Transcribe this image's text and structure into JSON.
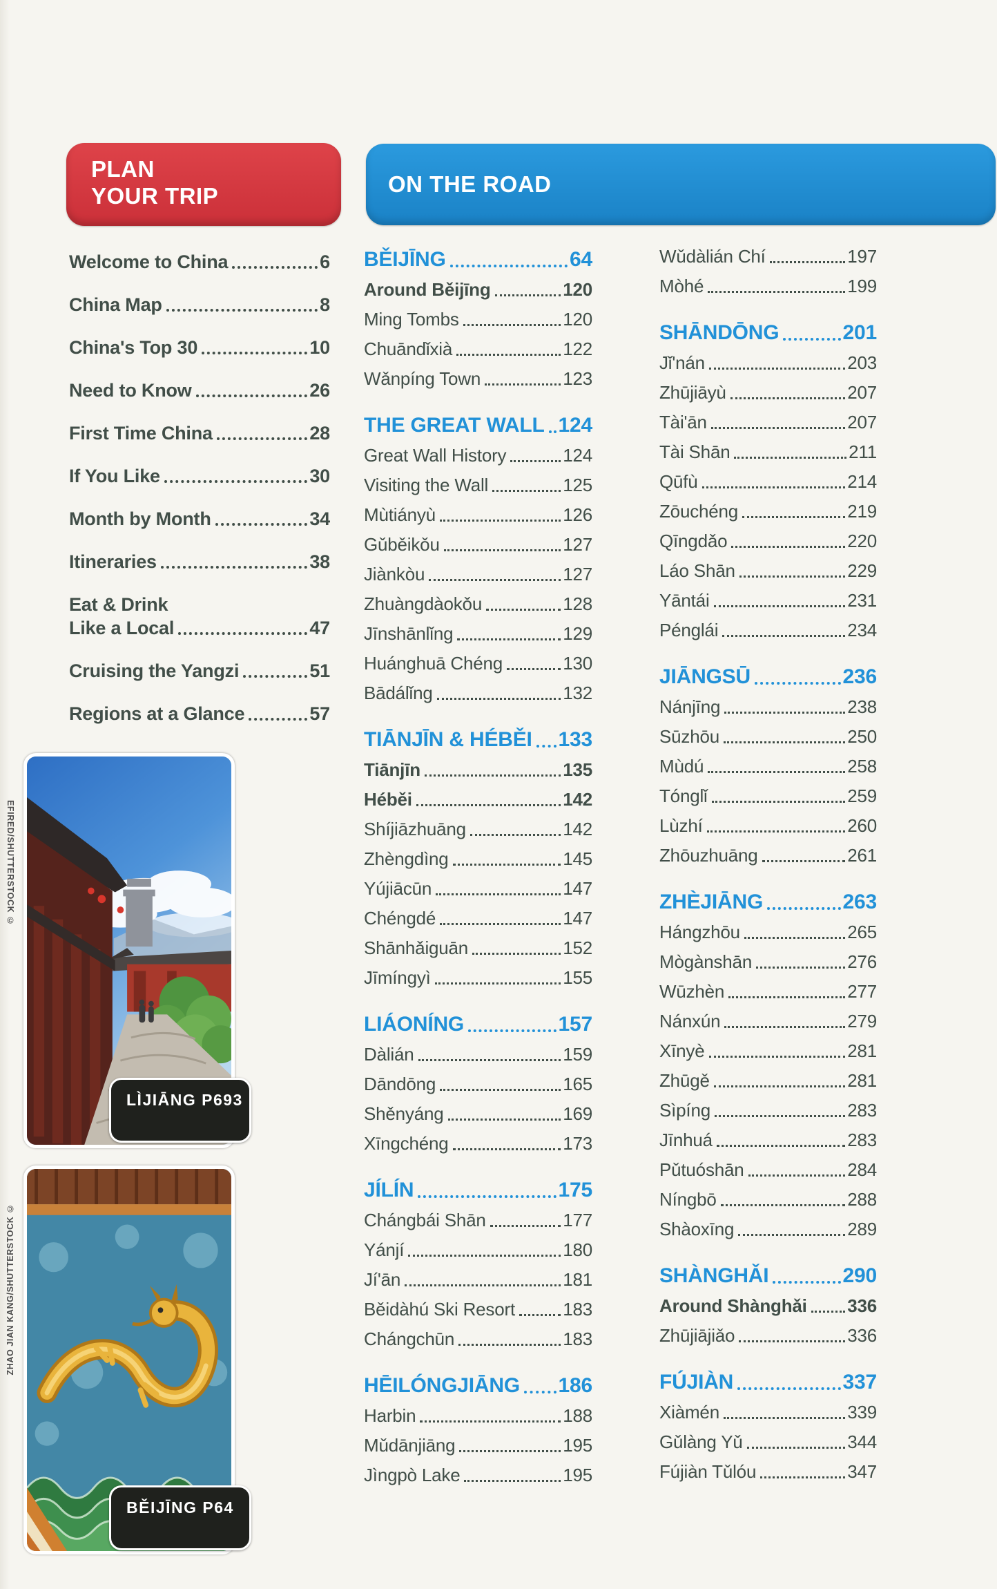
{
  "page": {
    "background": "#f6f5f0",
    "text_color": "#414e48",
    "accent_blue": "#2191d8",
    "badge_red": "#d8393f"
  },
  "badges": {
    "plan_line1": "PLAN",
    "plan_line2": "YOUR TRIP",
    "on_the_road": "ON THE ROAD"
  },
  "plan_items": [
    {
      "label": "Welcome to China",
      "page": "6"
    },
    {
      "label": "China Map",
      "page": "8"
    },
    {
      "label": "China's Top 30",
      "page": "10"
    },
    {
      "label": "Need to Know",
      "page": "26"
    },
    {
      "label": "First Time China",
      "page": "28"
    },
    {
      "label": "If You Like",
      "page": "30"
    },
    {
      "label": "Month by Month",
      "page": "34"
    },
    {
      "label": "Itineraries",
      "page": "38"
    },
    {
      "label": "Eat & Drink",
      "page": ""
    },
    {
      "label": "Like a Local",
      "page": "47"
    },
    {
      "label": "Cruising the Yangzi",
      "page": "51"
    },
    {
      "label": "Regions at a Glance",
      "page": "57"
    }
  ],
  "columns": {
    "middle": [
      {
        "title": "BĚIJĪNG",
        "page": "64",
        "entries": [
          {
            "label": "Around Běijīng",
            "page": "120",
            "bold": true
          },
          {
            "label": "Ming Tombs",
            "page": "120"
          },
          {
            "label": "Chuāndǐxià",
            "page": "122"
          },
          {
            "label": "Wǎnpíng Town",
            "page": "123"
          }
        ]
      },
      {
        "title": "THE GREAT WALL",
        "page": "124",
        "entries": [
          {
            "label": "Great Wall History",
            "page": "124"
          },
          {
            "label": "Visiting the Wall",
            "page": "125"
          },
          {
            "label": "Mùtiányù",
            "page": "126"
          },
          {
            "label": "Gǔběikǒu",
            "page": "127"
          },
          {
            "label": "Jiànkòu",
            "page": "127"
          },
          {
            "label": "Zhuàngdàokǒu",
            "page": "128"
          },
          {
            "label": "Jīnshānlǐng",
            "page": "129"
          },
          {
            "label": "Huánghuā Chéng",
            "page": "130"
          },
          {
            "label": "Bādálǐng",
            "page": "132"
          }
        ]
      },
      {
        "title": "TIĀNJĪN & HÉBĚI",
        "page": "133",
        "entries": [
          {
            "label": "Tiānjīn",
            "page": "135",
            "bold": true
          },
          {
            "label": "Héběi",
            "page": "142",
            "bold": true
          },
          {
            "label": "Shíjiāzhuāng",
            "page": "142"
          },
          {
            "label": "Zhèngdìng",
            "page": "145"
          },
          {
            "label": "Yújiācūn",
            "page": "147"
          },
          {
            "label": "Chéngdé",
            "page": "147"
          },
          {
            "label": "Shānhǎiguān",
            "page": "152"
          },
          {
            "label": "Jīmíngyì",
            "page": "155"
          }
        ]
      },
      {
        "title": "LIÁONÍNG",
        "page": "157",
        "entries": [
          {
            "label": "Dàlián",
            "page": "159"
          },
          {
            "label": "Dāndōng",
            "page": "165"
          },
          {
            "label": "Shěnyáng",
            "page": "169"
          },
          {
            "label": "Xīngchéng",
            "page": "173"
          }
        ]
      },
      {
        "title": "JÍLÍN",
        "page": "175",
        "entries": [
          {
            "label": "Chángbái Shān",
            "page": "177"
          },
          {
            "label": "Yánjí",
            "page": "180"
          },
          {
            "label": "Jí'ān",
            "page": "181"
          },
          {
            "label": "Běidàhú Ski Resort",
            "page": "183"
          },
          {
            "label": "Chángchūn",
            "page": "183"
          }
        ]
      },
      {
        "title": "HĒILÓNGJIĀNG",
        "page": "186",
        "entries": [
          {
            "label": "Harbin",
            "page": "188"
          },
          {
            "label": "Mǔdānjiāng",
            "page": "195"
          },
          {
            "label": "Jìngpò Lake",
            "page": "195"
          }
        ]
      }
    ],
    "right": [
      {
        "title": "",
        "page": "",
        "entries": [
          {
            "label": "Wǔdàlián Chí",
            "page": "197"
          },
          {
            "label": "Mòhé",
            "page": "199"
          }
        ]
      },
      {
        "title": "SHĀNDŌNG",
        "page": "201",
        "entries": [
          {
            "label": "Jǐ'nán",
            "page": "203"
          },
          {
            "label": "Zhūjiāyù",
            "page": "207"
          },
          {
            "label": "Tài'ān",
            "page": "207"
          },
          {
            "label": "Tài Shān",
            "page": "211"
          },
          {
            "label": "Qūfù",
            "page": "214"
          },
          {
            "label": "Zōuchéng",
            "page": "219"
          },
          {
            "label": "Qīngdǎo",
            "page": "220"
          },
          {
            "label": "Láo Shān",
            "page": "229"
          },
          {
            "label": "Yāntái",
            "page": "231"
          },
          {
            "label": "Pénglái",
            "page": "234"
          }
        ]
      },
      {
        "title": "JIĀNGSŪ",
        "page": "236",
        "entries": [
          {
            "label": "Nánjīng",
            "page": "238"
          },
          {
            "label": "Sūzhōu",
            "page": "250"
          },
          {
            "label": "Mùdú",
            "page": "258"
          },
          {
            "label": "Tónglǐ",
            "page": "259"
          },
          {
            "label": "Lùzhí",
            "page": "260"
          },
          {
            "label": "Zhōuzhuāng",
            "page": "261"
          }
        ]
      },
      {
        "title": "ZHÈJIĀNG",
        "page": "263",
        "entries": [
          {
            "label": "Hángzhōu",
            "page": "265"
          },
          {
            "label": "Mògànshān",
            "page": "276"
          },
          {
            "label": "Wūzhèn",
            "page": "277"
          },
          {
            "label": "Nánxún",
            "page": "279"
          },
          {
            "label": "Xīnyè",
            "page": "281"
          },
          {
            "label": "Zhūgě",
            "page": "281"
          },
          {
            "label": "Sìpíng",
            "page": "283"
          },
          {
            "label": "Jīnhuá",
            "page": "283"
          },
          {
            "label": "Pǔtuóshān",
            "page": "284"
          },
          {
            "label": "Níngbō",
            "page": "288"
          },
          {
            "label": "Shàoxīng",
            "page": "289"
          }
        ]
      },
      {
        "title": "SHÀNGHǍI",
        "page": "290",
        "entries": [
          {
            "label": "Around Shànghǎi",
            "page": "336",
            "bold": true
          },
          {
            "label": "Zhūjiājiǎo",
            "page": "336"
          }
        ]
      },
      {
        "title": "FÚJIÀN",
        "page": "337",
        "entries": [
          {
            "label": "Xiàmén",
            "page": "339"
          },
          {
            "label": "Gǔlàng Yǔ",
            "page": "344"
          },
          {
            "label": "Fújiàn Tǔlóu",
            "page": "347"
          }
        ]
      }
    ]
  },
  "photos": [
    {
      "caption": "LÌJIĀNG P693",
      "credit": "EFIRED/SHUTTERSTOCK ©"
    },
    {
      "caption": "BĚIJĪNG P64",
      "credit": "ZHAO JIAN KANG/SHUTTERSTOCK ©"
    }
  ]
}
